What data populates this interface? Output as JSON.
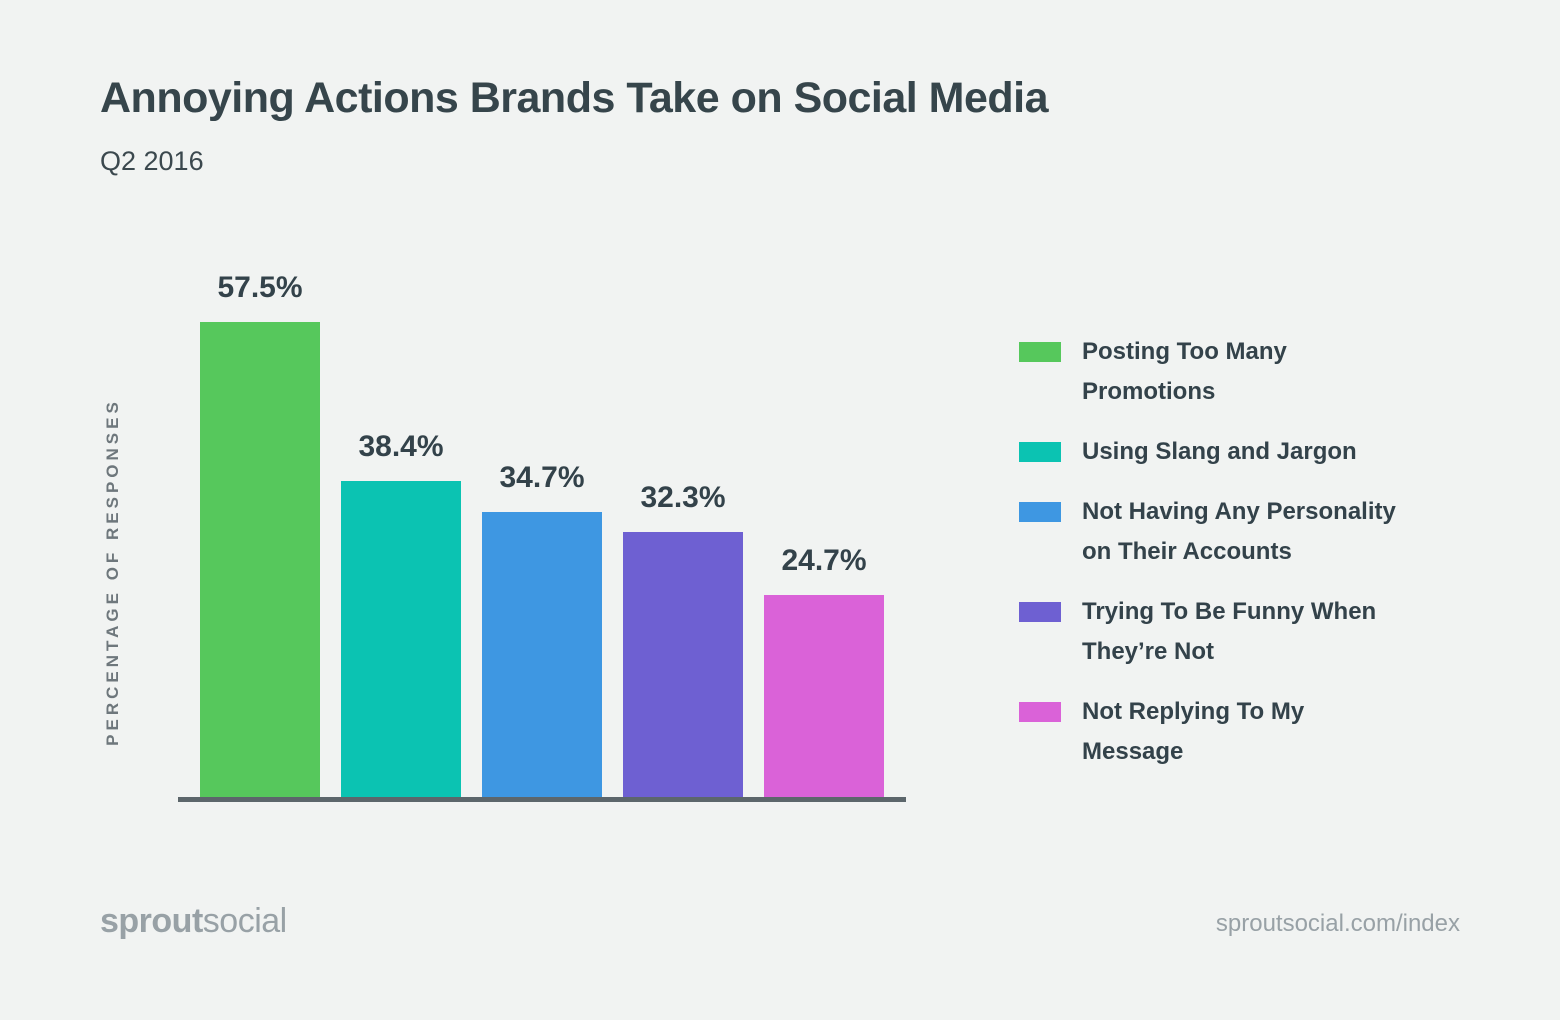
{
  "page": {
    "background": "#f1f3f2",
    "title": "Annoying Actions Brands Take on Social Media",
    "subtitle": "Q2 2016"
  },
  "chart_data": {
    "type": "bar",
    "title": "Annoying Actions Brands Take on Social Media",
    "subtitle": "Q2 2016",
    "xlabel": "",
    "ylabel": "PERCENTAGE OF RESPONSES",
    "ylim": [
      0,
      60
    ],
    "grid": false,
    "legend_position": "right",
    "categories": [
      "Posting Too Many Promotions",
      "Using Slang and Jargon",
      "Not Having Any Personality on Their Accounts",
      "Trying To Be Funny When They’re Not",
      "Not Replying To My Message"
    ],
    "values": [
      57.5,
      38.4,
      34.7,
      32.3,
      24.7
    ],
    "value_labels": [
      "57.5%",
      "38.4%",
      "34.7%",
      "32.3%",
      "24.7%"
    ],
    "colors": [
      "#56c85c",
      "#0bc3b2",
      "#3e97e2",
      "#6e60d2",
      "#da62d8"
    ],
    "legend": [
      {
        "label": "Posting Too Many\nPromotions",
        "color": "#56c85c"
      },
      {
        "label": "Using Slang and Jargon",
        "color": "#0bc3b2"
      },
      {
        "label": "Not Having Any Personality\non Their Accounts",
        "color": "#3e97e2"
      },
      {
        "label": "Trying To Be Funny When\nThey’re Not",
        "color": "#6e60d2"
      },
      {
        "label": "Not Replying To My\nMessage",
        "color": "#da62d8"
      }
    ]
  },
  "footer": {
    "logo_bold": "sprout",
    "logo_light": "social",
    "url": "sproutsocial.com/index"
  }
}
